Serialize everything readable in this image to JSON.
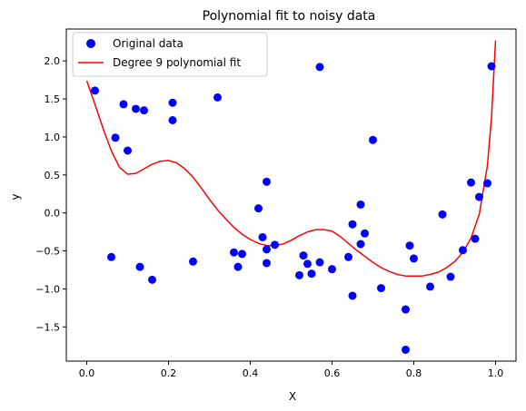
{
  "chart_data": {
    "type": "scatter",
    "title": "Polynomial fit to noisy data",
    "xlabel": "X",
    "ylabel": "y",
    "xlim": [
      -0.05,
      1.05
    ],
    "ylim": [
      -1.95,
      2.42
    ],
    "xticks": [
      0.0,
      0.2,
      0.4,
      0.6,
      0.8,
      1.0
    ],
    "xtick_labels": [
      "0.0",
      "0.2",
      "0.4",
      "0.6",
      "0.8",
      "1.0"
    ],
    "yticks": [
      -1.5,
      -1.0,
      -0.5,
      0.0,
      0.5,
      1.0,
      1.5,
      2.0
    ],
    "ytick_labels": [
      "−1.5",
      "−1.0",
      "−0.5",
      "0.0",
      "0.5",
      "1.0",
      "1.5",
      "2.0"
    ],
    "grid": false,
    "legend_position": "top-left",
    "series": [
      {
        "name": "Original data",
        "kind": "scatter",
        "color": "#0000ff",
        "points": [
          [
            0.02,
            1.61
          ],
          [
            0.06,
            -0.58
          ],
          [
            0.07,
            0.99
          ],
          [
            0.09,
            1.43
          ],
          [
            0.1,
            0.82
          ],
          [
            0.12,
            1.37
          ],
          [
            0.13,
            -0.71
          ],
          [
            0.14,
            1.35
          ],
          [
            0.16,
            -0.88
          ],
          [
            0.21,
            1.45
          ],
          [
            0.21,
            1.22
          ],
          [
            0.26,
            -0.64
          ],
          [
            0.32,
            1.52
          ],
          [
            0.36,
            -0.52
          ],
          [
            0.37,
            -0.71
          ],
          [
            0.38,
            -0.54
          ],
          [
            0.42,
            0.06
          ],
          [
            0.43,
            -0.32
          ],
          [
            0.44,
            0.41
          ],
          [
            0.44,
            -0.48
          ],
          [
            0.44,
            -0.66
          ],
          [
            0.46,
            -0.42
          ],
          [
            0.52,
            -0.82
          ],
          [
            0.53,
            -0.56
          ],
          [
            0.54,
            -0.67
          ],
          [
            0.55,
            -0.8
          ],
          [
            0.57,
            -0.65
          ],
          [
            0.57,
            1.92
          ],
          [
            0.6,
            -0.74
          ],
          [
            0.64,
            -0.58
          ],
          [
            0.65,
            -1.09
          ],
          [
            0.65,
            -0.15
          ],
          [
            0.67,
            -0.41
          ],
          [
            0.67,
            0.11
          ],
          [
            0.68,
            -0.27
          ],
          [
            0.7,
            0.96
          ],
          [
            0.72,
            -0.99
          ],
          [
            0.78,
            -1.27
          ],
          [
            0.78,
            -1.8
          ],
          [
            0.79,
            -0.43
          ],
          [
            0.8,
            -0.6
          ],
          [
            0.84,
            -0.97
          ],
          [
            0.87,
            -0.02
          ],
          [
            0.89,
            -0.84
          ],
          [
            0.92,
            -0.49
          ],
          [
            0.94,
            0.4
          ],
          [
            0.95,
            -0.34
          ],
          [
            0.96,
            0.21
          ],
          [
            0.98,
            0.39
          ],
          [
            0.99,
            1.93
          ]
        ]
      },
      {
        "name": "Degree 9 polynomial fit",
        "kind": "line",
        "color": "#ff0000",
        "points": [
          [
            0.0,
            1.74
          ],
          [
            0.02,
            1.43
          ],
          [
            0.04,
            1.11
          ],
          [
            0.06,
            0.82
          ],
          [
            0.08,
            0.6
          ],
          [
            0.1,
            0.51
          ],
          [
            0.12,
            0.52
          ],
          [
            0.14,
            0.58
          ],
          [
            0.16,
            0.64
          ],
          [
            0.18,
            0.68
          ],
          [
            0.2,
            0.69
          ],
          [
            0.22,
            0.66
          ],
          [
            0.24,
            0.58
          ],
          [
            0.26,
            0.47
          ],
          [
            0.28,
            0.33
          ],
          [
            0.3,
            0.18
          ],
          [
            0.32,
            0.04
          ],
          [
            0.34,
            -0.08
          ],
          [
            0.36,
            -0.19
          ],
          [
            0.38,
            -0.28
          ],
          [
            0.4,
            -0.35
          ],
          [
            0.42,
            -0.4
          ],
          [
            0.44,
            -0.43
          ],
          [
            0.46,
            -0.43
          ],
          [
            0.48,
            -0.41
          ],
          [
            0.5,
            -0.36
          ],
          [
            0.52,
            -0.3
          ],
          [
            0.54,
            -0.25
          ],
          [
            0.56,
            -0.22
          ],
          [
            0.58,
            -0.22
          ],
          [
            0.6,
            -0.24
          ],
          [
            0.62,
            -0.31
          ],
          [
            0.64,
            -0.4
          ],
          [
            0.66,
            -0.49
          ],
          [
            0.68,
            -0.57
          ],
          [
            0.7,
            -0.65
          ],
          [
            0.72,
            -0.72
          ],
          [
            0.74,
            -0.77
          ],
          [
            0.76,
            -0.81
          ],
          [
            0.78,
            -0.83
          ],
          [
            0.8,
            -0.83
          ],
          [
            0.82,
            -0.83
          ],
          [
            0.84,
            -0.81
          ],
          [
            0.86,
            -0.78
          ],
          [
            0.88,
            -0.72
          ],
          [
            0.9,
            -0.64
          ],
          [
            0.92,
            -0.52
          ],
          [
            0.94,
            -0.33
          ],
          [
            0.96,
            -0.02
          ],
          [
            0.98,
            0.62
          ],
          [
            0.99,
            1.25
          ],
          [
            1.0,
            2.27
          ]
        ]
      }
    ]
  }
}
